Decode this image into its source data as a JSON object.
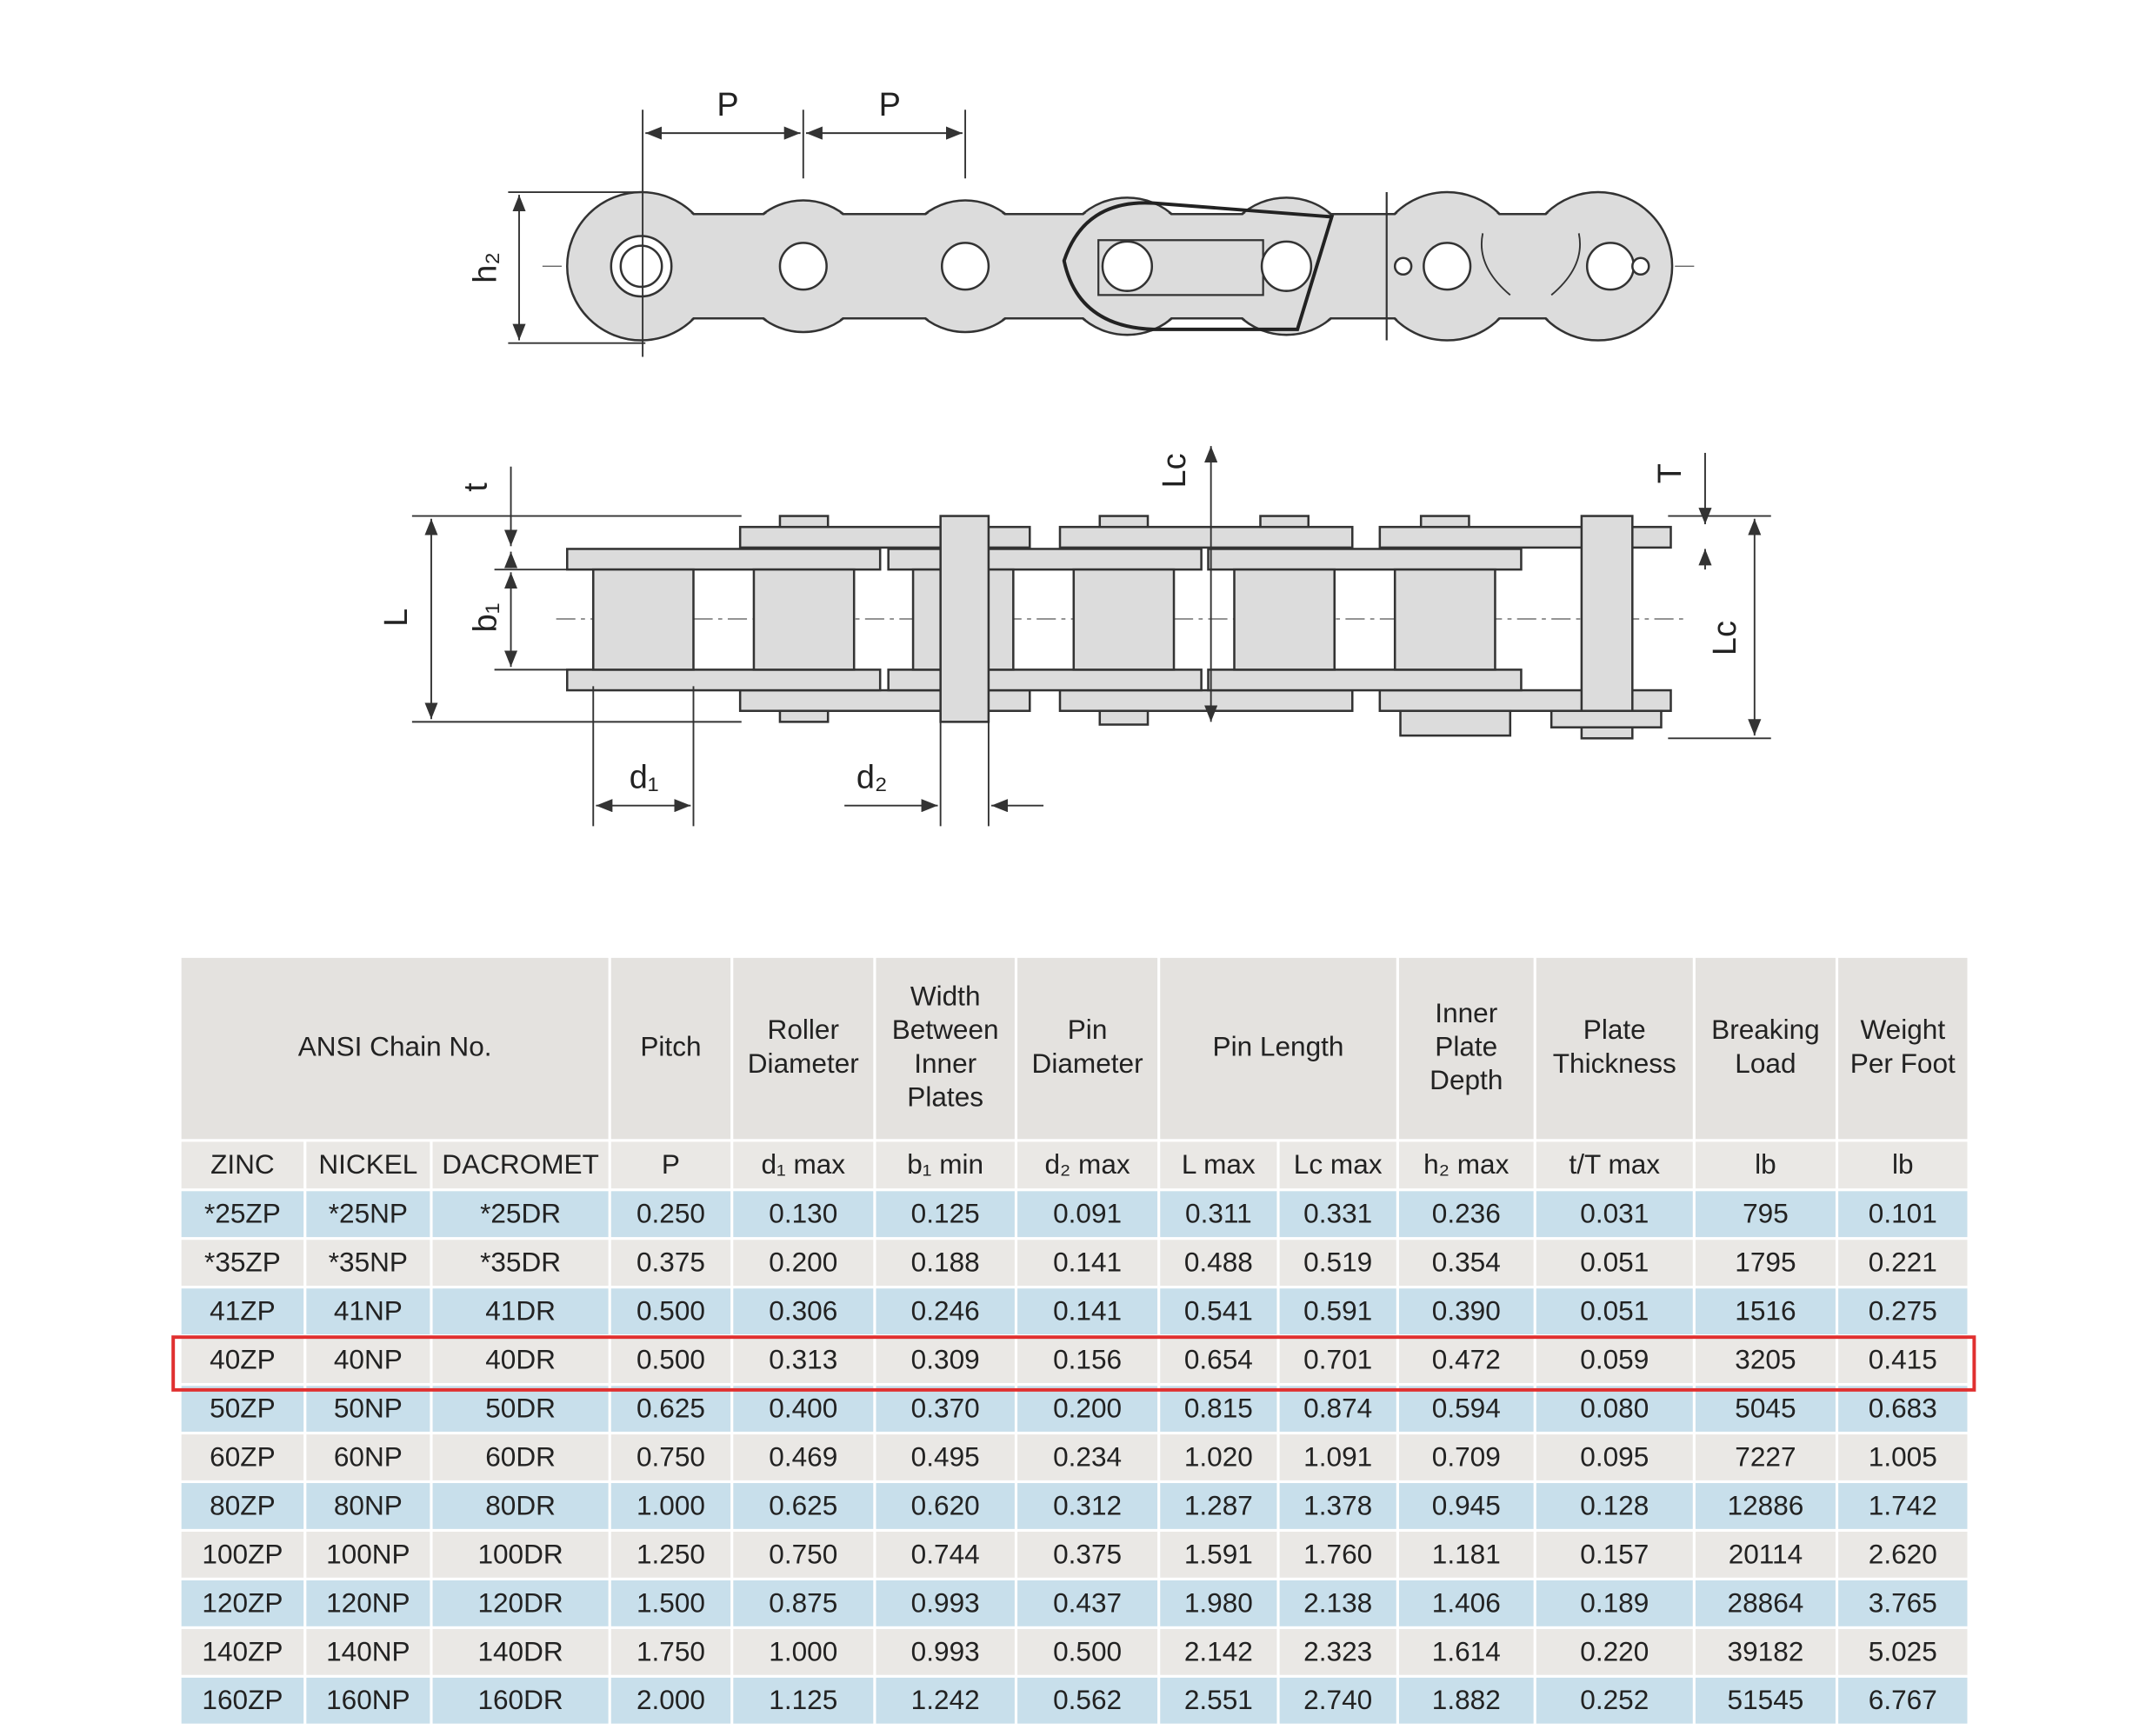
{
  "diagram": {
    "labels": [
      "P",
      "P",
      "h₂",
      "t",
      "L",
      "b₁",
      "Lc",
      "T",
      "Lc",
      "d₁",
      "d₂"
    ]
  },
  "table": {
    "header": [
      [
        "ANSI Chain No."
      ],
      [
        "Pitch"
      ],
      [
        "Roller",
        "Diameter"
      ],
      [
        "Width",
        "Between",
        "Inner",
        "Plates"
      ],
      [
        "Pin",
        "Diameter"
      ],
      [
        "Pin Length"
      ],
      [
        "Inner",
        "Plate",
        "Depth"
      ],
      [
        "Plate",
        "Thickness"
      ],
      [
        "Breaking",
        "Load"
      ],
      [
        "Weight",
        "Per Foot"
      ]
    ],
    "subheader": [
      "ZINC",
      "NICKEL",
      "DACROMET",
      "P",
      "d₁ max",
      "b₁ min",
      "d₂ max",
      "L max",
      "Lc max",
      "h₂ max",
      "t/T max",
      "lb",
      "lb"
    ],
    "rows": [
      [
        "*25ZP",
        "*25NP",
        "*25DR",
        "0.250",
        "0.130",
        "0.125",
        "0.091",
        "0.311",
        "0.331",
        "0.236",
        "0.031",
        "795",
        "0.101"
      ],
      [
        "*35ZP",
        "*35NP",
        "*35DR",
        "0.375",
        "0.200",
        "0.188",
        "0.141",
        "0.488",
        "0.519",
        "0.354",
        "0.051",
        "1795",
        "0.221"
      ],
      [
        "41ZP",
        "41NP",
        "41DR",
        "0.500",
        "0.306",
        "0.246",
        "0.141",
        "0.541",
        "0.591",
        "0.390",
        "0.051",
        "1516",
        "0.275"
      ],
      [
        "40ZP",
        "40NP",
        "40DR",
        "0.500",
        "0.313",
        "0.309",
        "0.156",
        "0.654",
        "0.701",
        "0.472",
        "0.059",
        "3205",
        "0.415"
      ],
      [
        "50ZP",
        "50NP",
        "50DR",
        "0.625",
        "0.400",
        "0.370",
        "0.200",
        "0.815",
        "0.874",
        "0.594",
        "0.080",
        "5045",
        "0.683"
      ],
      [
        "60ZP",
        "60NP",
        "60DR",
        "0.750",
        "0.469",
        "0.495",
        "0.234",
        "1.020",
        "1.091",
        "0.709",
        "0.095",
        "7227",
        "1.005"
      ],
      [
        "80ZP",
        "80NP",
        "80DR",
        "1.000",
        "0.625",
        "0.620",
        "0.312",
        "1.287",
        "1.378",
        "0.945",
        "0.128",
        "12886",
        "1.742"
      ],
      [
        "100ZP",
        "100NP",
        "100DR",
        "1.250",
        "0.750",
        "0.744",
        "0.375",
        "1.591",
        "1.760",
        "1.181",
        "0.157",
        "20114",
        "2.620"
      ],
      [
        "120ZP",
        "120NP",
        "120DR",
        "1.500",
        "0.875",
        "0.993",
        "0.437",
        "1.980",
        "2.138",
        "1.406",
        "0.189",
        "28864",
        "3.765"
      ],
      [
        "140ZP",
        "140NP",
        "140DR",
        "1.750",
        "1.000",
        "0.993",
        "0.500",
        "2.142",
        "2.323",
        "1.614",
        "0.220",
        "39182",
        "5.025"
      ],
      [
        "160ZP",
        "160NP",
        "160DR",
        "2.000",
        "1.125",
        "1.242",
        "0.562",
        "2.551",
        "2.740",
        "1.882",
        "0.252",
        "51545",
        "6.767"
      ]
    ]
  }
}
